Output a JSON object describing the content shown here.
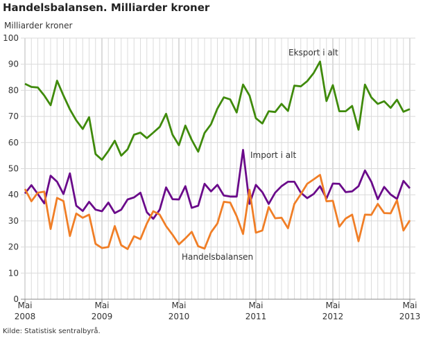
{
  "title": "Handelsbalansen. Milliarder kroner",
  "source": "Kilde: Statistisk sentralbyrå.",
  "chart_data": {
    "type": "line",
    "ylabel": "Milliarder kroner",
    "ylim": [
      0,
      100
    ],
    "yticks": [
      0,
      10,
      20,
      30,
      40,
      50,
      60,
      70,
      80,
      90,
      100
    ],
    "grid": true,
    "x_start": "2008-05",
    "x_end": "2013-05",
    "frequency": "monthly",
    "xtick_labels": [
      {
        "month": "Mai",
        "year": "2008"
      },
      {
        "month": "Mai",
        "year": "2009"
      },
      {
        "month": "Mai",
        "year": "2010"
      },
      {
        "month": "Mai",
        "year": "2011"
      },
      {
        "month": "Mai",
        "year": "2012"
      },
      {
        "month": "Mai",
        "year": "2013"
      }
    ],
    "series": [
      {
        "name": "Eksport i alt",
        "color": "#3f8a0b",
        "values": [
          82.5,
          81.3,
          81.1,
          78,
          74.3,
          83.7,
          78,
          72.7,
          68.5,
          65.2,
          69.7,
          55.6,
          53.4,
          56.8,
          60.7,
          55,
          57.4,
          63,
          63.8,
          61.7,
          63.8,
          66,
          71,
          63,
          59,
          66.5,
          61,
          56.5,
          63.7,
          67,
          73,
          77.3,
          76.5,
          71.5,
          82.2,
          78,
          69.3,
          67.3,
          72,
          71.7,
          74.8,
          72.1,
          81.8,
          81.5,
          83.5,
          86.6,
          91,
          75.9,
          82,
          72,
          72,
          74,
          64.9,
          82.2,
          77.3,
          74.8,
          75.8,
          73.3,
          76.4,
          71.8,
          72.8
        ]
      },
      {
        "name": "Import i alt",
        "color": "#6a0a8a",
        "values": [
          40.5,
          43.7,
          40.3,
          36.7,
          47.3,
          45,
          40.3,
          48.2,
          35.8,
          33.8,
          37.3,
          34.3,
          33.7,
          37,
          33,
          34.3,
          38.2,
          39,
          40.8,
          33.3,
          30.8,
          34.3,
          42.8,
          38.3,
          38.2,
          43.3,
          35,
          35.8,
          44.2,
          41.3,
          43.8,
          39.7,
          39.3,
          39.3,
          57.2,
          36.5,
          43.8,
          41,
          36.5,
          40.8,
          43.3,
          45,
          45,
          40.8,
          38.7,
          40.3,
          43.3,
          38.6,
          44.3,
          44.2,
          41,
          41.3,
          43.3,
          49.3,
          45,
          38.3,
          43,
          40.1,
          38.4,
          45.3,
          42.5
        ]
      },
      {
        "name": "Handelsbalansen",
        "color": "#f07e26",
        "values": [
          42.2,
          37.5,
          40.8,
          41.2,
          26.9,
          38.8,
          37.6,
          24.2,
          32.8,
          31.2,
          32.4,
          21.2,
          19.6,
          20,
          28,
          20.7,
          19.2,
          24.1,
          23,
          29,
          33.7,
          32.4,
          28,
          24.7,
          21,
          23.3,
          25.8,
          20.3,
          19.4,
          25.6,
          29,
          37.3,
          37,
          31.8,
          25,
          41.9,
          25.5,
          26.3,
          35.3,
          31,
          31.2,
          27.2,
          36.5,
          40.2,
          44.2,
          45.9,
          47.6,
          37.5,
          37.7,
          27.8,
          30.9,
          32.4,
          22.2,
          32.4,
          32.3,
          36.5,
          33,
          32.9,
          37.9,
          26.3,
          30.2
        ]
      }
    ]
  }
}
